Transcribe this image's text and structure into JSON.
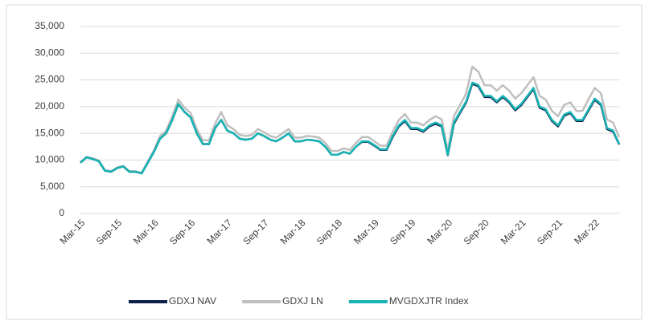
{
  "chart_data": {
    "type": "line",
    "categories": [
      "Mar-15",
      null,
      null,
      null,
      null,
      null,
      "Sep-15",
      null,
      null,
      null,
      null,
      null,
      "Mar-16",
      null,
      null,
      null,
      null,
      null,
      "Sep-16",
      null,
      null,
      null,
      null,
      null,
      "Mar-17",
      null,
      null,
      null,
      null,
      null,
      "Sep-17",
      null,
      null,
      null,
      null,
      null,
      "Mar-18",
      null,
      null,
      null,
      null,
      null,
      "Sep-18",
      null,
      null,
      null,
      null,
      null,
      "Mar-19",
      null,
      null,
      null,
      null,
      null,
      "Sep-19",
      null,
      null,
      null,
      null,
      null,
      "Mar-20",
      null,
      null,
      null,
      null,
      null,
      "Sep-20",
      null,
      null,
      null,
      null,
      null,
      "Mar-21",
      null,
      null,
      null,
      null,
      null,
      "Sep-21",
      null,
      null,
      null,
      null,
      null,
      "Mar-22",
      null,
      null,
      null,
      null
    ],
    "series": [
      {
        "name": "GDXJ LN",
        "color": "#bfbfbf",
        "values": [
          9600,
          10600,
          10300,
          9900,
          8100,
          7900,
          8600,
          8900,
          7900,
          7900,
          7600,
          9700,
          11800,
          14500,
          15500,
          18200,
          21300,
          19800,
          18800,
          15800,
          13700,
          13700,
          16800,
          19000,
          16500,
          15800,
          14700,
          14500,
          14700,
          15800,
          15200,
          14500,
          14200,
          15000,
          15800,
          14200,
          14200,
          14500,
          14400,
          14200,
          13200,
          11700,
          11700,
          12200,
          11900,
          13200,
          14300,
          14300,
          13500,
          12700,
          12700,
          15300,
          17500,
          18600,
          17000,
          17000,
          16500,
          17500,
          18200,
          17600,
          11800,
          18200,
          20300,
          22500,
          27500,
          26500,
          24000,
          24000,
          23000,
          24000,
          23000,
          21500,
          22500,
          24000,
          25500,
          22000,
          21300,
          19200,
          18200,
          20300,
          20800,
          19200,
          19200,
          21400,
          23500,
          22500,
          17600,
          17000,
          14300
        ]
      },
      {
        "name": "GDXJ NAV",
        "color": "#0d1f4a",
        "values": [
          9500,
          10500,
          10200,
          9800,
          8000,
          7800,
          8500,
          8800,
          7800,
          7800,
          7500,
          9500,
          11500,
          14000,
          15000,
          17500,
          20500,
          19000,
          18000,
          15000,
          13000,
          13000,
          16000,
          17500,
          15500,
          15000,
          14000,
          13800,
          14000,
          15000,
          14500,
          13800,
          13500,
          14200,
          15000,
          13500,
          13500,
          13800,
          13700,
          13500,
          12500,
          11000,
          11000,
          11500,
          11200,
          12500,
          13400,
          13400,
          12700,
          11900,
          11900,
          14300,
          16300,
          17300,
          15800,
          15800,
          15300,
          16300,
          16800,
          16300,
          10900,
          16800,
          18800,
          20800,
          24300,
          23800,
          21800,
          21800,
          20800,
          21800,
          20800,
          19300,
          20300,
          21800,
          23300,
          19800,
          19300,
          17300,
          16300,
          18300,
          18800,
          17300,
          17300,
          19300,
          21300,
          20300,
          15800,
          15300,
          12900
        ]
      },
      {
        "name": "MVGDXJTR Index",
        "color": "#17b5b5",
        "values": [
          9500,
          10500,
          10200,
          9800,
          8000,
          7800,
          8500,
          8800,
          7800,
          7800,
          7500,
          9500,
          11500,
          14000,
          15000,
          17500,
          20500,
          19000,
          18000,
          15000,
          13000,
          13000,
          16000,
          17500,
          15500,
          15000,
          14000,
          13800,
          14000,
          15000,
          14500,
          13800,
          13500,
          14200,
          15000,
          13500,
          13500,
          13800,
          13700,
          13500,
          12500,
          11000,
          11000,
          11500,
          11200,
          12500,
          13500,
          13500,
          12800,
          12000,
          12000,
          14500,
          16500,
          17500,
          16000,
          16000,
          15500,
          16500,
          17000,
          16500,
          11000,
          17000,
          19000,
          21000,
          24500,
          24000,
          22000,
          22000,
          21000,
          22000,
          21000,
          19500,
          20500,
          22000,
          23500,
          20000,
          19500,
          17500,
          16500,
          18500,
          19000,
          17500,
          17500,
          19500,
          21500,
          20500,
          16000,
          15500,
          13000
        ]
      }
    ],
    "legend_order": [
      "GDXJ NAV",
      "GDXJ LN",
      "MVGDXJTR Index"
    ],
    "ylim": [
      0,
      35000
    ],
    "yticks": [
      0,
      {
        "value": 5000,
        "label": "5,000"
      },
      {
        "value": 10000,
        "label": "10,000"
      },
      {
        "value": 15000,
        "label": "15,000"
      },
      {
        "value": 20000,
        "label": "20,000"
      },
      {
        "value": 25000,
        "label": "25,000"
      },
      {
        "value": 30000,
        "label": "30,000"
      },
      {
        "value": 35000,
        "label": "35,000"
      }
    ],
    "grid": true,
    "legend": "bottom"
  }
}
